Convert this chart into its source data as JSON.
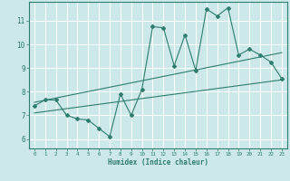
{
  "xlabel": "Humidex (Indice chaleur)",
  "bg_color": "#cce8e8",
  "grid_color": "#ffffff",
  "line_color": "#2e7d6e",
  "xlim": [
    -0.5,
    23.5
  ],
  "ylim": [
    5.6,
    11.8
  ],
  "yticks": [
    6,
    7,
    8,
    9,
    10,
    11
  ],
  "xticks": [
    0,
    1,
    2,
    3,
    4,
    5,
    6,
    7,
    8,
    9,
    10,
    11,
    12,
    13,
    14,
    15,
    16,
    17,
    18,
    19,
    20,
    21,
    22,
    23
  ],
  "line1_x": [
    0,
    1,
    2,
    3,
    4,
    5,
    6,
    7,
    8,
    9,
    10,
    11,
    12,
    13,
    14,
    15,
    16,
    17,
    18,
    19,
    20,
    21,
    22,
    23
  ],
  "line1_y": [
    7.4,
    7.65,
    7.65,
    7.0,
    6.85,
    6.8,
    6.45,
    6.1,
    7.9,
    7.0,
    8.1,
    10.75,
    10.7,
    9.1,
    10.4,
    8.9,
    11.5,
    11.2,
    11.55,
    9.55,
    9.8,
    9.55,
    9.25,
    8.55
  ],
  "line2_x": [
    0,
    23
  ],
  "line2_y": [
    7.1,
    8.5
  ],
  "line3_x": [
    0,
    23
  ],
  "line3_y": [
    7.55,
    9.65
  ]
}
